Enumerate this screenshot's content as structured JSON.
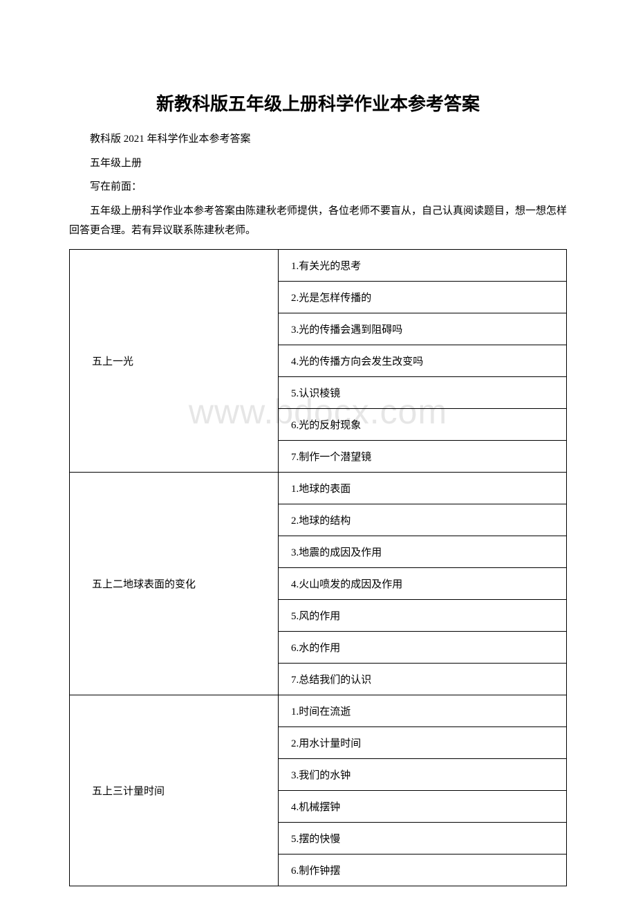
{
  "title": "新教科版五年级上册科学作业本参考答案",
  "intro": {
    "line1": "教科版 2021 年科学作业本参考答案",
    "line2": "五年级上册",
    "line3": "写在前面：",
    "line4": "五年级上册科学作业本参考答案由陈建秋老师提供，各位老师不要盲从，自己认真阅读题目，想一想怎样回答更合理。若有异议联系陈建秋老师。"
  },
  "watermark": "www.bdocx.com",
  "units": [
    {
      "name": "五上一光",
      "lessons": [
        "1.有关光的思考",
        "2.光是怎样传播的",
        "3.光的传播会遇到阻碍吗",
        "4.光的传播方向会发生改变吗",
        "5.认识棱镜",
        "6.光的反射现象",
        "7.制作一个潜望镜"
      ]
    },
    {
      "name": "五上二地球表面的变化",
      "lessons": [
        "1.地球的表面",
        "2.地球的结构",
        "3.地震的成因及作用",
        "4.火山喷发的成因及作用",
        "5.风的作用",
        "6.水的作用",
        "7.总结我们的认识"
      ]
    },
    {
      "name": "五上三计量时间",
      "lessons": [
        "1.时间在流逝",
        "2.用水计量时间",
        "3.我们的水钟",
        "4.机械摆钟",
        "5.摆的快慢",
        "6.制作钟摆"
      ]
    }
  ]
}
